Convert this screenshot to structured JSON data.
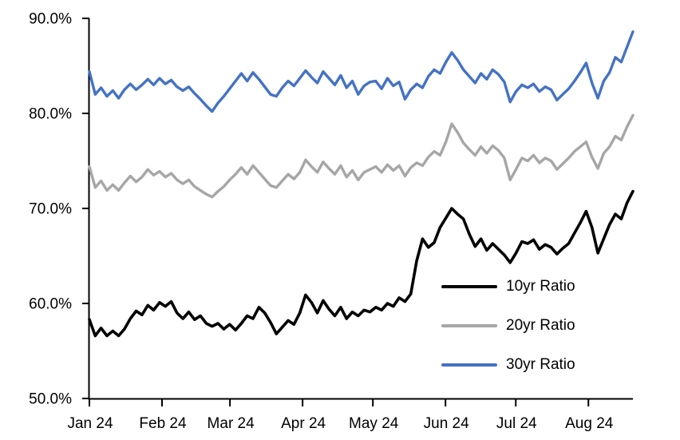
{
  "chart_data": {
    "type": "line",
    "title": "",
    "unit": "%",
    "grid": false,
    "legend_position": "inside-bottom-right",
    "background_color": "#FFFFFF",
    "axis_color": "#000000",
    "x_axis": {
      "tick_labels": [
        "Jan 24",
        "Feb 24",
        "Mar 24",
        "Apr 24",
        "May 24",
        "Jun 24",
        "Jul 24",
        "Aug 24"
      ],
      "tick_day_offsets": [
        0,
        31,
        60,
        91,
        121,
        152,
        182,
        213
      ],
      "total_days": 232
    },
    "y_axis": {
      "min": 50,
      "max": 90,
      "tick_values": [
        50,
        60,
        70,
        80,
        90
      ],
      "tick_labels": [
        "50.0%",
        "60.0%",
        "70.0%",
        "80.0%",
        "90.0%"
      ]
    },
    "series": [
      {
        "name": "10yr Ratio",
        "color": "#000000",
        "values": [
          58.3,
          56.6,
          57.4,
          56.6,
          57.1,
          56.6,
          57.3,
          58.4,
          59.2,
          58.8,
          59.8,
          59.3,
          60.1,
          59.7,
          60.2,
          59.0,
          58.4,
          59.1,
          58.3,
          58.7,
          57.9,
          57.6,
          57.9,
          57.3,
          57.8,
          57.2,
          57.9,
          58.7,
          58.4,
          59.6,
          59.0,
          58.0,
          56.8,
          57.5,
          58.2,
          57.8,
          59.0,
          60.9,
          60.1,
          59.0,
          60.3,
          59.4,
          58.7,
          59.6,
          58.4,
          59.1,
          58.7,
          59.3,
          59.1,
          59.6,
          59.3,
          60.0,
          59.7,
          60.6,
          60.2,
          61.0,
          64.5,
          66.8,
          65.9,
          66.4,
          68.0,
          69.0,
          70.0,
          69.4,
          68.9,
          67.3,
          66.0,
          66.8,
          65.6,
          66.3,
          65.7,
          65.1,
          64.3,
          65.3,
          66.5,
          66.3,
          66.7,
          65.7,
          66.2,
          65.9,
          65.2,
          65.8,
          66.3,
          67.4,
          68.5,
          69.7,
          68.0,
          65.3,
          66.8,
          68.3,
          69.4,
          68.9,
          70.6,
          71.8
        ]
      },
      {
        "name": "20yr Ratio",
        "color": "#A6A6A6",
        "values": [
          74.4,
          72.2,
          72.9,
          71.9,
          72.5,
          71.9,
          72.7,
          73.4,
          72.8,
          73.3,
          74.1,
          73.5,
          73.9,
          73.3,
          73.7,
          73.0,
          72.6,
          73.0,
          72.3,
          71.9,
          71.5,
          71.2,
          71.8,
          72.3,
          73.0,
          73.6,
          74.3,
          73.6,
          74.5,
          73.8,
          73.1,
          72.4,
          72.2,
          72.9,
          73.6,
          73.1,
          73.8,
          75.1,
          74.4,
          73.8,
          74.9,
          74.2,
          73.6,
          74.5,
          73.3,
          74.0,
          73.0,
          73.8,
          74.1,
          74.4,
          73.8,
          74.6,
          74.0,
          74.5,
          73.4,
          74.3,
          74.8,
          74.5,
          75.4,
          76.0,
          75.6,
          77.0,
          78.9,
          78.0,
          76.9,
          76.2,
          75.6,
          76.5,
          75.8,
          76.6,
          76.1,
          75.3,
          73.0,
          74.1,
          75.3,
          75.0,
          75.6,
          74.8,
          75.3,
          75.0,
          74.1,
          74.7,
          75.3,
          76.0,
          76.5,
          77.0,
          75.4,
          74.2,
          75.8,
          76.5,
          77.6,
          77.2,
          78.6,
          79.8
        ]
      },
      {
        "name": "30yr Ratio",
        "color": "#4472C4",
        "values": [
          84.4,
          82.0,
          82.7,
          81.8,
          82.4,
          81.6,
          82.5,
          83.1,
          82.5,
          83.0,
          83.6,
          83.0,
          83.7,
          83.1,
          83.5,
          82.8,
          82.4,
          82.8,
          82.1,
          81.5,
          80.8,
          80.2,
          81.1,
          81.8,
          82.6,
          83.4,
          84.2,
          83.4,
          84.3,
          83.6,
          82.8,
          82.0,
          81.8,
          82.7,
          83.4,
          82.9,
          83.7,
          84.5,
          83.8,
          83.2,
          84.4,
          83.7,
          83.0,
          84.0,
          82.7,
          83.4,
          82.0,
          82.9,
          83.3,
          83.4,
          82.6,
          83.7,
          82.9,
          83.3,
          81.5,
          82.5,
          83.1,
          82.7,
          83.9,
          84.6,
          84.2,
          85.4,
          86.4,
          85.6,
          84.6,
          83.9,
          83.2,
          84.2,
          83.6,
          84.6,
          84.1,
          83.3,
          81.2,
          82.3,
          83.0,
          82.7,
          83.1,
          82.3,
          82.8,
          82.5,
          81.4,
          82.0,
          82.6,
          83.4,
          84.3,
          85.3,
          83.2,
          81.6,
          83.4,
          84.3,
          85.9,
          85.4,
          87.0,
          88.6
        ]
      }
    ]
  }
}
